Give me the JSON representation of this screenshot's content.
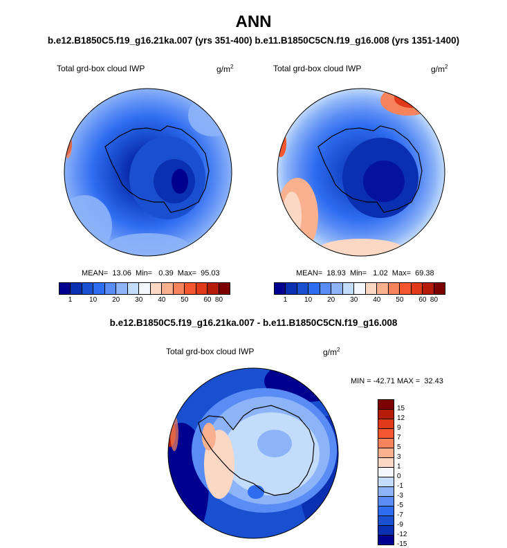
{
  "title": "ANN",
  "subtitle": "b.e12.B1850C5.f19_g16.21ka.007 (yrs 351-400)  b.e11.B1850C5CN.f19_g16.008 (yrs 1351-1400)",
  "panels": {
    "left": {
      "label": "Total grd-box cloud IWP",
      "unit": "g/m",
      "unit_sup": "2",
      "stats": "MEAN=  13.06  Min=   0.39  Max=  95.03"
    },
    "right": {
      "label": "Total grd-box cloud IWP",
      "unit": "g/m",
      "unit_sup": "2",
      "stats": "MEAN=  18.93  Min=   1.02  Max=  69.38"
    },
    "diff": {
      "title": "b.e12.B1850C5.f19_g16.21ka.007 - b.e11.B1850C5CN.f19_g16.008",
      "label": "Total grd-box cloud IWP",
      "unit": "g/m",
      "unit_sup": "2",
      "stats": "MIN = -42.71 MAX =  32.43"
    }
  },
  "colorbar_abs": {
    "colors": [
      "#00008f",
      "#0a2fb0",
      "#1a4fd0",
      "#2e6cf0",
      "#5a8cf5",
      "#8db4f8",
      "#c4dcfb",
      "#f3f6fb",
      "#fcd8c4",
      "#f9b08f",
      "#f6835c",
      "#f4572f",
      "#e03a1a",
      "#b41b08",
      "#7d0000"
    ],
    "labels": [
      "1",
      "10",
      "20",
      "30",
      "40",
      "50",
      "60",
      "80"
    ]
  },
  "colorbar_diff": {
    "colors": [
      "#7d0000",
      "#b41b08",
      "#e03a1a",
      "#f4572f",
      "#f6835c",
      "#f9b08f",
      "#fcd8c4",
      "#f3f6fb",
      "#c4dcfb",
      "#8db4f8",
      "#5a8cf5",
      "#2e6cf0",
      "#1a4fd0",
      "#0a2fb0",
      "#00008f"
    ],
    "labels": [
      "15",
      "12",
      "9",
      "7",
      "5",
      "3",
      "1",
      "0",
      "-1",
      "-3",
      "-5",
      "-7",
      "-9",
      "-12",
      "-15"
    ]
  }
}
